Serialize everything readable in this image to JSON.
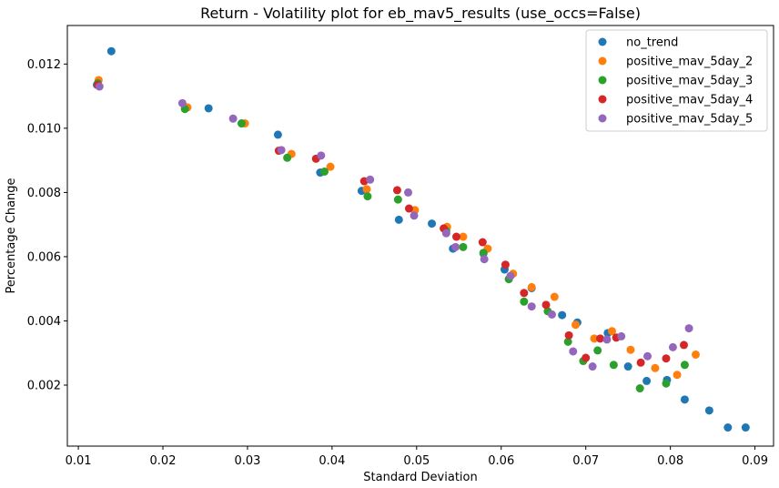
{
  "chart_data": {
    "type": "scatter",
    "title": "Return - Volatility plot for eb_mav5_results (use_occs=False)",
    "xlabel": "Standard Deviation",
    "ylabel": "Percentage Change",
    "xlim": [
      0.0087,
      0.0922
    ],
    "ylim": [
      0.0001,
      0.0132
    ],
    "xticks": [
      0.01,
      0.02,
      0.03,
      0.04,
      0.05,
      0.06,
      0.07,
      0.08,
      0.09
    ],
    "xtick_labels": [
      "0.01",
      "0.02",
      "0.03",
      "0.04",
      "0.05",
      "0.06",
      "0.07",
      "0.08",
      "0.09"
    ],
    "yticks": [
      0.002,
      0.004,
      0.006,
      0.008,
      0.01,
      0.012
    ],
    "ytick_labels": [
      "0.002",
      "0.004",
      "0.006",
      "0.008",
      "0.010",
      "0.012"
    ],
    "grid": false,
    "legend_position": "top-right",
    "series": [
      {
        "name": "no_trend",
        "color": "#1f77b4",
        "points": [
          [
            0.0139,
            0.0124
          ],
          [
            0.0122,
            0.01135
          ],
          [
            0.0254,
            0.01062
          ],
          [
            0.0336,
            0.0098
          ],
          [
            0.0386,
            0.00862
          ],
          [
            0.0435,
            0.00805
          ],
          [
            0.0479,
            0.00715
          ],
          [
            0.0518,
            0.00703
          ],
          [
            0.0543,
            0.00625
          ],
          [
            0.0579,
            0.0061
          ],
          [
            0.0604,
            0.0056
          ],
          [
            0.0636,
            0.00502
          ],
          [
            0.0672,
            0.00418
          ],
          [
            0.069,
            0.00395
          ],
          [
            0.0726,
            0.00362
          ],
          [
            0.075,
            0.00258
          ],
          [
            0.0772,
            0.00213
          ],
          [
            0.0796,
            0.00216
          ],
          [
            0.0817,
            0.00155
          ],
          [
            0.0846,
            0.00121
          ],
          [
            0.0868,
            0.00068
          ],
          [
            0.0889,
            0.00068
          ]
        ]
      },
      {
        "name": "positive_mav_5day_2",
        "color": "#ff7f0e",
        "points": [
          [
            0.0124,
            0.0115
          ],
          [
            0.0229,
            0.01065
          ],
          [
            0.0297,
            0.01015
          ],
          [
            0.0352,
            0.0092
          ],
          [
            0.0398,
            0.0088
          ],
          [
            0.0441,
            0.0081
          ],
          [
            0.0498,
            0.00745
          ],
          [
            0.0536,
            0.00693
          ],
          [
            0.0555,
            0.00662
          ],
          [
            0.0584,
            0.00625
          ],
          [
            0.0614,
            0.00547
          ],
          [
            0.0636,
            0.00505
          ],
          [
            0.0663,
            0.00475
          ],
          [
            0.0688,
            0.00388
          ],
          [
            0.071,
            0.00345
          ],
          [
            0.0731,
            0.00368
          ],
          [
            0.0753,
            0.0031
          ],
          [
            0.0782,
            0.00253
          ],
          [
            0.0808,
            0.00232
          ],
          [
            0.083,
            0.00295
          ]
        ]
      },
      {
        "name": "positive_mav_5day_3",
        "color": "#2ca02c",
        "points": [
          [
            0.0123,
            0.0114
          ],
          [
            0.0226,
            0.0106
          ],
          [
            0.0293,
            0.01015
          ],
          [
            0.0347,
            0.00908
          ],
          [
            0.0391,
            0.00865
          ],
          [
            0.0442,
            0.00788
          ],
          [
            0.0478,
            0.00778
          ],
          [
            0.0535,
            0.0068
          ],
          [
            0.0555,
            0.0063
          ],
          [
            0.0579,
            0.00612
          ],
          [
            0.0609,
            0.0053
          ],
          [
            0.0627,
            0.0046
          ],
          [
            0.0655,
            0.0043
          ],
          [
            0.0679,
            0.00335
          ],
          [
            0.0697,
            0.00275
          ],
          [
            0.0714,
            0.00308
          ],
          [
            0.0733,
            0.00263
          ],
          [
            0.0764,
            0.0019
          ],
          [
            0.0795,
            0.00205
          ],
          [
            0.0817,
            0.00263
          ]
        ]
      },
      {
        "name": "positive_mav_5day_4",
        "color": "#d62728",
        "points": [
          [
            0.0123,
            0.01135
          ],
          [
            0.0337,
            0.0093
          ],
          [
            0.0381,
            0.00905
          ],
          [
            0.0438,
            0.00835
          ],
          [
            0.0477,
            0.00807
          ],
          [
            0.0491,
            0.0075
          ],
          [
            0.0532,
            0.00688
          ],
          [
            0.0547,
            0.00662
          ],
          [
            0.0578,
            0.00645
          ],
          [
            0.0605,
            0.00575
          ],
          [
            0.0627,
            0.00487
          ],
          [
            0.0653,
            0.0045
          ],
          [
            0.068,
            0.00355
          ],
          [
            0.07,
            0.00285
          ],
          [
            0.0717,
            0.00345
          ],
          [
            0.0736,
            0.00348
          ],
          [
            0.0765,
            0.0027
          ],
          [
            0.0795,
            0.00283
          ],
          [
            0.0816,
            0.00325
          ]
        ]
      },
      {
        "name": "positive_mav_5day_5",
        "color": "#9467bd",
        "points": [
          [
            0.0125,
            0.0113
          ],
          [
            0.0223,
            0.01078
          ],
          [
            0.0283,
            0.0103
          ],
          [
            0.034,
            0.00932
          ],
          [
            0.0387,
            0.00915
          ],
          [
            0.0445,
            0.0084
          ],
          [
            0.049,
            0.008
          ],
          [
            0.0497,
            0.00728
          ],
          [
            0.0535,
            0.00673
          ],
          [
            0.0546,
            0.0063
          ],
          [
            0.058,
            0.00592
          ],
          [
            0.0611,
            0.0054
          ],
          [
            0.0636,
            0.00445
          ],
          [
            0.066,
            0.0042
          ],
          [
            0.0685,
            0.00305
          ],
          [
            0.0708,
            0.00258
          ],
          [
            0.0725,
            0.00342
          ],
          [
            0.0742,
            0.00352
          ],
          [
            0.0773,
            0.0029
          ],
          [
            0.0803,
            0.00318
          ],
          [
            0.0822,
            0.00377
          ]
        ]
      }
    ]
  }
}
